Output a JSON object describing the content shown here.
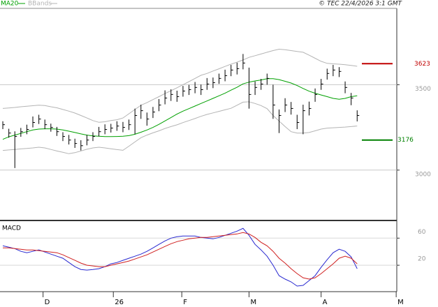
{
  "chart_data": {
    "type": "hlc",
    "copyright": "© TEC 22/4/2026 3:1 GMT",
    "color": "#000000",
    "xlim": [
      -0.47,
      65.6
    ],
    "xticks": [
      {
        "value": 6.7,
        "label": "D"
      },
      {
        "value": 18.4,
        "label": "26"
      },
      {
        "value": 29.8,
        "label": "F"
      },
      {
        "value": 41,
        "label": "M"
      },
      {
        "value": 53,
        "label": "A"
      },
      {
        "value": 65.5,
        "label": "M"
      }
    ],
    "ylim": [
      2705,
      3947
    ],
    "yticks": [
      3000,
      3500
    ],
    "grid": true,
    "high": [
      3286,
      3242,
      3227,
      3247,
      3266,
      3314,
      3324,
      3296,
      3272,
      3253,
      3222,
      3206,
      3184,
      3175,
      3206,
      3222,
      3253,
      3268,
      3271,
      3286,
      3282,
      3296,
      3360,
      3383,
      3337,
      3370,
      3416,
      3467,
      3473,
      3465,
      3493,
      3499,
      3516,
      3501,
      3539,
      3542,
      3565,
      3588,
      3616,
      3629,
      3680,
      3600,
      3519,
      3534,
      3565,
      3500,
      3355,
      3421,
      3399,
      3324,
      3383,
      3401,
      3478,
      3534,
      3594,
      3616,
      3603,
      3519,
      3452,
      3350
    ],
    "low": [
      3240,
      3190,
      3012,
      3195,
      3210,
      3250,
      3270,
      3240,
      3225,
      3200,
      3170,
      3150,
      3130,
      3115,
      3145,
      3170,
      3198,
      3210,
      3220,
      3230,
      3222,
      3235,
      3210,
      3300,
      3260,
      3305,
      3345,
      3385,
      3405,
      3400,
      3430,
      3440,
      3450,
      3440,
      3470,
      3480,
      3505,
      3520,
      3550,
      3560,
      3590,
      3360,
      3440,
      3470,
      3500,
      3300,
      3217,
      3340,
      3325,
      3240,
      3210,
      3320,
      3400,
      3470,
      3530,
      3550,
      3545,
      3450,
      3380,
      3285
    ],
    "close": [
      3266,
      3217,
      3197,
      3225,
      3238,
      3279,
      3299,
      3266,
      3250,
      3225,
      3197,
      3176,
      3156,
      3143,
      3176,
      3197,
      3225,
      3238,
      3246,
      3258,
      3250,
      3266,
      3320,
      3348,
      3299,
      3340,
      3381,
      3422,
      3443,
      3430,
      3463,
      3471,
      3484,
      3471,
      3504,
      3512,
      3537,
      3553,
      3586,
      3594,
      3627,
      3443,
      3484,
      3504,
      3537,
      3381,
      3320,
      3381,
      3361,
      3279,
      3348,
      3361,
      3443,
      3504,
      3566,
      3586,
      3578,
      3484,
      3422,
      3320
    ],
    "ma": {
      "name": "MA20",
      "color": "#00a000",
      "values": [
        3180,
        3195,
        3205,
        3215,
        3225,
        3235,
        3240,
        3242,
        3242,
        3240,
        3235,
        3228,
        3220,
        3212,
        3205,
        3200,
        3198,
        3196,
        3196,
        3197,
        3198,
        3202,
        3210,
        3222,
        3235,
        3250,
        3268,
        3288,
        3308,
        3328,
        3345,
        3360,
        3375,
        3390,
        3405,
        3420,
        3435,
        3450,
        3468,
        3485,
        3505,
        3515,
        3522,
        3528,
        3535,
        3535,
        3530,
        3520,
        3510,
        3495,
        3478,
        3462,
        3450,
        3440,
        3430,
        3420,
        3415,
        3420,
        3430,
        3435
      ]
    },
    "bbands": {
      "name": "BBands",
      "color": "#b4b4b4",
      "upper": [
        3361,
        3364,
        3367,
        3371,
        3374,
        3377,
        3380,
        3378,
        3371,
        3365,
        3355,
        3345,
        3334,
        3320,
        3305,
        3290,
        3280,
        3283,
        3290,
        3295,
        3305,
        3330,
        3355,
        3380,
        3395,
        3413,
        3430,
        3448,
        3465,
        3482,
        3500,
        3518,
        3537,
        3555,
        3566,
        3580,
        3593,
        3607,
        3620,
        3632,
        3645,
        3660,
        3670,
        3680,
        3690,
        3700,
        3708,
        3705,
        3700,
        3695,
        3690,
        3673,
        3655,
        3637,
        3625,
        3622,
        3620,
        3617,
        3613,
        3608
      ],
      "lower": [
        3115,
        3118,
        3121,
        3124,
        3127,
        3130,
        3134,
        3130,
        3121,
        3112,
        3104,
        3096,
        3102,
        3112,
        3122,
        3130,
        3134,
        3130,
        3125,
        3120,
        3116,
        3140,
        3165,
        3190,
        3205,
        3218,
        3230,
        3244,
        3255,
        3265,
        3278,
        3290,
        3302,
        3315,
        3326,
        3335,
        3344,
        3353,
        3362,
        3380,
        3398,
        3400,
        3390,
        3378,
        3360,
        3320,
        3287,
        3255,
        3225,
        3217,
        3217,
        3220,
        3230,
        3240,
        3246,
        3248,
        3250,
        3252,
        3255,
        3258
      ]
    },
    "levels": [
      {
        "value": 3623,
        "color": "#c00000"
      },
      {
        "value": 3176,
        "color": "#008000"
      }
    ],
    "macd_panel": {
      "title": "MACD",
      "ylim": [
        -19,
        84
      ],
      "yticks": [
        60,
        20
      ],
      "series": [
        {
          "color": "#2828d0",
          "values": [
            48.7,
            46.7,
            44.6,
            40.5,
            38.5,
            40.5,
            42.6,
            39.5,
            36.4,
            33.3,
            30.3,
            24.1,
            17.9,
            13.8,
            12.8,
            13.8,
            14.9,
            17.9,
            22.1,
            24.1,
            27.2,
            30.3,
            33.3,
            36.4,
            40.5,
            45.6,
            50.8,
            55.9,
            60.0,
            62.1,
            63.1,
            63.1,
            63.1,
            61.0,
            60.0,
            59.0,
            61.0,
            64.1,
            67.2,
            70.3,
            74.4,
            64.1,
            50.8,
            42.6,
            33.3,
            20,
            4.6,
            -0.5,
            -4.6,
            -10.8,
            -9.7,
            -2.6,
            4.6,
            16.9,
            28.2,
            38.5,
            43.6,
            40.5,
            32.3,
            14.9
          ]
        },
        {
          "color": "#d02020",
          "values": [
            45.6,
            45.6,
            44.6,
            43.6,
            42.6,
            42.6,
            41.5,
            40.5,
            39.5,
            38.5,
            35.4,
            31.3,
            27.2,
            23.1,
            20.0,
            19.0,
            17.9,
            17.9,
            20.0,
            22.1,
            24.1,
            26.2,
            29.2,
            32.3,
            35.4,
            39.5,
            43.6,
            47.7,
            51.8,
            54.9,
            56.9,
            59.0,
            60.0,
            61.0,
            61.0,
            62.1,
            63.1,
            64.1,
            65.1,
            66.2,
            68.2,
            66.2,
            61.0,
            53.8,
            48.7,
            40.5,
            30.3,
            23.1,
            14.9,
            7.7,
            1.5,
            -0.5,
            1.5,
            7.7,
            14.9,
            22.1,
            30.3,
            33.3,
            30.3,
            22.1
          ]
        }
      ]
    }
  }
}
